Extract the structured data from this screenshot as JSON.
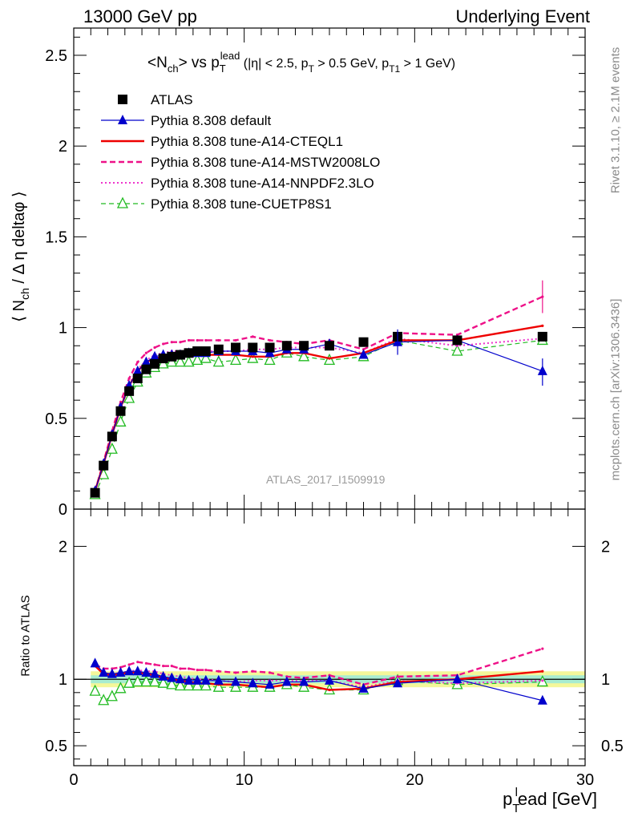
{
  "header": {
    "left_label": "13000 GeV pp",
    "right_label": "Underlying Event",
    "side_label_top": "Rivet 3.1.10, ≥ 2.1M events",
    "side_label_bottom": "mcplots.cern.ch [arXiv:1306.3436]",
    "analysis_label": "ATLAS_2017_I1509919"
  },
  "colors": {
    "atlas": "#000000",
    "default": "#0000cc",
    "cteql1": "#ee0000",
    "mstw": "#ee1188",
    "nnpdf": "#ee33cc",
    "cuetp8s1": "#22bb22",
    "band_inner": "#a8ecd0",
    "band_outer": "#f4f79a"
  },
  "chart_data": [
    {
      "type": "scatter",
      "title": "<N_ch> vs p_T^lead (|η| < 2.5, p_T > 0.5 GeV, p_T1 > 1 GeV)",
      "ylabel": "⟨ N_ch / Δ η deltaφ ⟩",
      "xlim": [
        0,
        30
      ],
      "ylim": [
        0,
        2.65
      ],
      "yticks": [
        "0",
        "0.5",
        "1",
        "1.5",
        "2",
        "2.5"
      ],
      "legend_position": "top-left",
      "x": [
        1.25,
        1.75,
        2.25,
        2.75,
        3.25,
        3.75,
        4.25,
        4.75,
        5.25,
        5.75,
        6.25,
        6.75,
        7.25,
        7.75,
        8.5,
        9.5,
        10.5,
        11.5,
        12.5,
        13.5,
        15.0,
        17.0,
        19.0,
        22.5,
        27.5
      ],
      "series": [
        {
          "name": "ATLAS",
          "key": "atlas",
          "style": "squares",
          "values": [
            0.09,
            0.24,
            0.4,
            0.54,
            0.65,
            0.72,
            0.77,
            0.8,
            0.83,
            0.84,
            0.85,
            0.86,
            0.87,
            0.87,
            0.88,
            0.89,
            0.89,
            0.89,
            0.9,
            0.9,
            0.9,
            0.92,
            0.95,
            0.93,
            0.95
          ]
        },
        {
          "name": "Pythia 8.308 default",
          "key": "default",
          "style": "solid-triangles",
          "values": [
            0.1,
            0.25,
            0.41,
            0.56,
            0.68,
            0.76,
            0.81,
            0.84,
            0.85,
            0.85,
            0.85,
            0.86,
            0.86,
            0.86,
            0.87,
            0.87,
            0.87,
            0.86,
            0.88,
            0.88,
            0.91,
            0.85,
            0.92,
            0.93,
            0.76
          ]
        },
        {
          "name": "Pythia 8.308 tune-A14-CTEQL1",
          "key": "cteql1",
          "style": "solid",
          "values": [
            0.1,
            0.25,
            0.41,
            0.56,
            0.68,
            0.76,
            0.81,
            0.83,
            0.84,
            0.84,
            0.84,
            0.85,
            0.85,
            0.85,
            0.85,
            0.85,
            0.84,
            0.84,
            0.86,
            0.86,
            0.83,
            0.86,
            0.93,
            0.93,
            1.01
          ]
        },
        {
          "name": "Pythia 8.308 tune-A14-MSTW2008LO",
          "key": "mstw",
          "style": "dashed",
          "values": [
            0.1,
            0.26,
            0.43,
            0.59,
            0.72,
            0.81,
            0.86,
            0.89,
            0.91,
            0.92,
            0.92,
            0.93,
            0.93,
            0.93,
            0.93,
            0.93,
            0.95,
            0.93,
            0.92,
            0.91,
            0.93,
            0.88,
            0.97,
            0.96,
            1.17
          ]
        },
        {
          "name": "Pythia 8.308 tune-A14-NNPDF2.3LO",
          "key": "nnpdf",
          "style": "dotted",
          "values": [
            0.1,
            0.25,
            0.42,
            0.57,
            0.69,
            0.77,
            0.82,
            0.85,
            0.86,
            0.87,
            0.87,
            0.87,
            0.87,
            0.87,
            0.87,
            0.87,
            0.88,
            0.88,
            0.89,
            0.89,
            0.89,
            0.86,
            0.94,
            0.9,
            0.94
          ]
        },
        {
          "name": "Pythia 8.308 tune-CUETP8S1",
          "key": "cuetp8s1",
          "style": "dashed-open-triangles",
          "values": [
            0.08,
            0.19,
            0.33,
            0.48,
            0.61,
            0.7,
            0.75,
            0.78,
            0.8,
            0.81,
            0.81,
            0.81,
            0.82,
            0.83,
            0.81,
            0.82,
            0.83,
            0.82,
            0.86,
            0.84,
            0.82,
            0.84,
            0.93,
            0.87,
            0.93
          ]
        }
      ]
    },
    {
      "type": "scatter",
      "ylabel": "Ratio to ATLAS",
      "xlabel": "p_T^lead [GeV]",
      "xlim": [
        0,
        30
      ],
      "ylim": [
        0.35,
        2.28
      ],
      "xticks": [
        "0",
        "10",
        "20",
        "30"
      ],
      "yticks": [
        "0.5",
        "1",
        "2"
      ],
      "reference_band": {
        "inner": 0.03,
        "outer": 0.06
      },
      "x": [
        1.25,
        1.75,
        2.25,
        2.75,
        3.25,
        3.75,
        4.25,
        4.75,
        5.25,
        5.75,
        6.25,
        6.75,
        7.25,
        7.75,
        8.5,
        9.5,
        10.5,
        11.5,
        12.5,
        13.5,
        15.0,
        17.0,
        19.0,
        22.5,
        27.5
      ],
      "series": [
        {
          "key": "default",
          "values": [
            1.12,
            1.05,
            1.04,
            1.05,
            1.06,
            1.06,
            1.05,
            1.04,
            1.02,
            1.01,
            1.0,
            0.99,
            0.99,
            0.99,
            0.99,
            0.98,
            0.97,
            0.96,
            0.98,
            0.98,
            0.99,
            0.93,
            0.97,
            1.0,
            0.84
          ]
        },
        {
          "key": "cteql1",
          "values": [
            1.1,
            1.04,
            1.03,
            1.04,
            1.05,
            1.05,
            1.04,
            1.03,
            1.01,
            1.0,
            0.99,
            0.98,
            0.97,
            0.97,
            0.96,
            0.96,
            0.95,
            0.94,
            0.96,
            0.96,
            0.92,
            0.93,
            0.98,
            1.0,
            1.06
          ]
        },
        {
          "key": "mstw",
          "values": [
            1.11,
            1.08,
            1.08,
            1.09,
            1.11,
            1.13,
            1.12,
            1.11,
            1.1,
            1.1,
            1.08,
            1.08,
            1.07,
            1.07,
            1.06,
            1.05,
            1.06,
            1.05,
            1.02,
            1.01,
            1.03,
            0.96,
            1.02,
            1.03,
            1.23
          ]
        },
        {
          "key": "nnpdf",
          "values": [
            1.1,
            1.05,
            1.04,
            1.05,
            1.06,
            1.07,
            1.06,
            1.06,
            1.04,
            1.03,
            1.02,
            1.01,
            1.0,
            1.0,
            0.99,
            0.98,
            0.99,
            0.99,
            0.99,
            0.99,
            0.99,
            0.94,
            0.99,
            0.97,
            0.99
          ]
        },
        {
          "key": "cuetp8s1",
          "values": [
            0.91,
            0.84,
            0.87,
            0.93,
            0.97,
            0.98,
            0.98,
            0.98,
            0.97,
            0.96,
            0.95,
            0.95,
            0.95,
            0.95,
            0.94,
            0.94,
            0.94,
            0.94,
            0.96,
            0.94,
            0.92,
            0.92,
            0.99,
            0.96,
            0.98
          ]
        }
      ]
    }
  ]
}
